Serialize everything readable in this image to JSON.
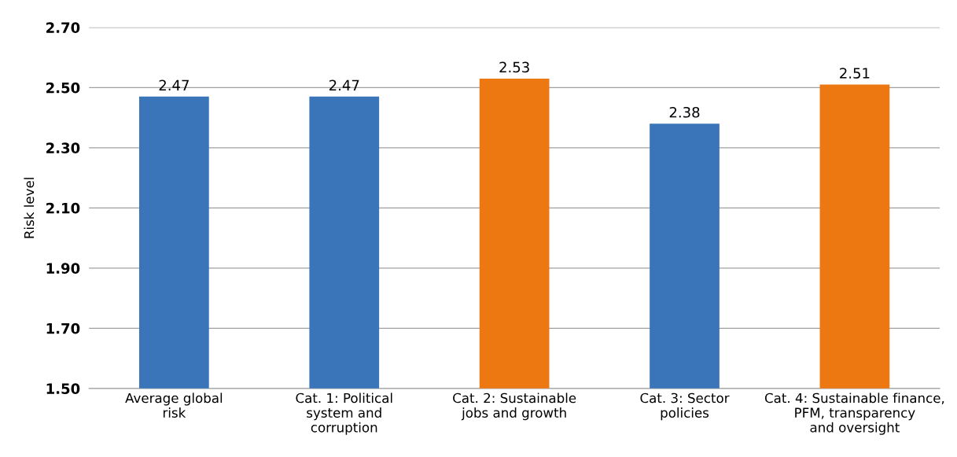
{
  "chart_data": {
    "type": "bar",
    "ylabel": "Risk level",
    "categories": [
      "Average global\nrisk",
      "Cat. 1: Political\nsystem and\ncorruption",
      "Cat. 2: Sustainable\njobs and growth",
      "Cat. 3: Sector\npolicies",
      "Cat. 4: Sustainable finance,\nPFM, transparency\nand oversight"
    ],
    "values": [
      2.47,
      2.47,
      2.53,
      2.38,
      2.51
    ],
    "colors": [
      "#3a75b9",
      "#3a75b9",
      "#ed7710",
      "#3a75b9",
      "#ed7710"
    ],
    "ylim": [
      1.5,
      2.7
    ],
    "yticks": [
      {
        "value": 1.5,
        "label": "1.50"
      },
      {
        "value": 1.7,
        "label": "1.70"
      },
      {
        "value": 1.9,
        "label": "1.90"
      },
      {
        "value": 2.1,
        "label": "2.10"
      },
      {
        "value": 2.3,
        "label": "2.30"
      },
      {
        "value": 2.5,
        "label": "2.50"
      },
      {
        "value": 2.7,
        "label": "2.70"
      }
    ],
    "grid": "y",
    "data_labels": true
  }
}
